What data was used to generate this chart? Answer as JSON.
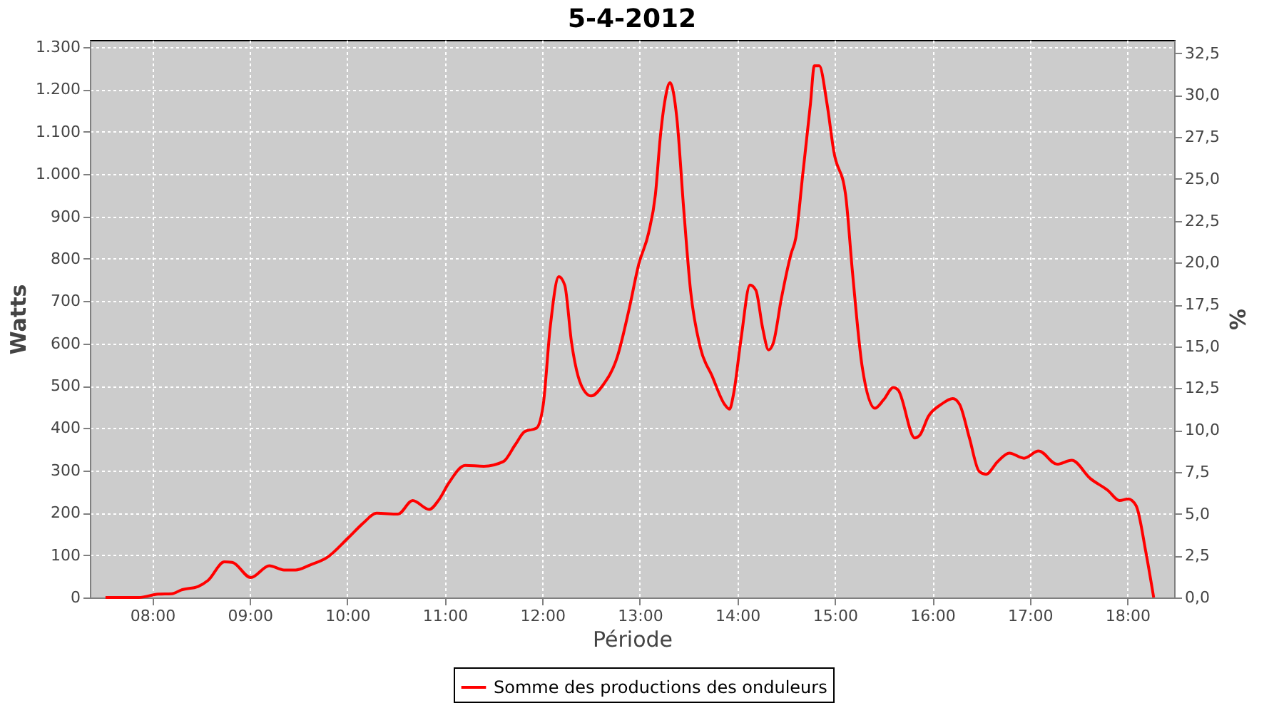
{
  "chart_data": {
    "type": "line",
    "title": "5-4-2012",
    "xlabel": "Période",
    "ylabel": "Watts",
    "y2label": "%",
    "xlim": [
      7.36,
      18.48
    ],
    "xticks": [
      {
        "value": 8,
        "label": "08:00"
      },
      {
        "value": 9,
        "label": "09:00"
      },
      {
        "value": 10,
        "label": "10:00"
      },
      {
        "value": 11,
        "label": "11:00"
      },
      {
        "value": 12,
        "label": "12:00"
      },
      {
        "value": 13,
        "label": "13:00"
      },
      {
        "value": 14,
        "label": "14:00"
      },
      {
        "value": 15,
        "label": "15:00"
      },
      {
        "value": 16,
        "label": "16:00"
      },
      {
        "value": 17,
        "label": "17:00"
      },
      {
        "value": 18,
        "label": "18:00"
      }
    ],
    "ylim": [
      0,
      1317
    ],
    "yticks": [
      0,
      100,
      200,
      300,
      400,
      500,
      600,
      700,
      800,
      900,
      {
        "value": 1000,
        "label": "1.000"
      },
      {
        "value": 1100,
        "label": "1.100"
      },
      {
        "value": 1200,
        "label": "1.200"
      },
      {
        "value": 1300,
        "label": "1.300"
      }
    ],
    "y2lim": [
      0,
      33.3
    ],
    "y2ticks": [
      {
        "value": 0,
        "label": "0,0"
      },
      {
        "value": 2.5,
        "label": "2,5"
      },
      {
        "value": 5,
        "label": "5,0"
      },
      {
        "value": 7.5,
        "label": "7,5"
      },
      {
        "value": 10,
        "label": "10,0"
      },
      {
        "value": 12.5,
        "label": "12,5"
      },
      {
        "value": 15,
        "label": "15,0"
      },
      {
        "value": 17.5,
        "label": "17,5"
      },
      {
        "value": 20,
        "label": "20,0"
      },
      {
        "value": 22.5,
        "label": "22,5"
      },
      {
        "value": 25,
        "label": "25,0"
      },
      {
        "value": 27.5,
        "label": "27,5"
      },
      {
        "value": 30,
        "label": "30,0"
      },
      {
        "value": 32.5,
        "label": "32,5"
      }
    ],
    "grid": true,
    "legend": "bottom",
    "marker": "none",
    "line_style": "solid",
    "series": [
      {
        "name": "Somme des productions des onduleurs",
        "color": "#ff0000",
        "x": [
          7.52,
          7.86,
          8.06,
          8.2,
          8.3,
          8.47,
          8.57,
          8.74,
          8.82,
          9.01,
          9.2,
          9.35,
          9.47,
          9.62,
          9.79,
          10.01,
          10.16,
          10.3,
          10.52,
          10.67,
          10.84,
          10.94,
          11.04,
          11.21,
          11.4,
          11.6,
          11.72,
          11.82,
          11.94,
          12.01,
          12.08,
          12.17,
          12.23,
          12.3,
          12.4,
          12.5,
          12.62,
          12.77,
          12.89,
          12.99,
          13.09,
          13.16,
          13.21,
          13.26,
          13.31,
          13.38,
          13.45,
          13.52,
          13.62,
          13.74,
          13.87,
          13.92,
          13.96,
          14.04,
          14.13,
          14.19,
          14.26,
          14.32,
          14.37,
          14.45,
          14.55,
          14.6,
          14.67,
          14.75,
          14.79,
          14.84,
          14.92,
          14.99,
          15.11,
          15.18,
          15.28,
          15.41,
          15.5,
          15.6,
          15.65,
          15.82,
          15.87,
          15.96,
          16.09,
          16.21,
          16.28,
          16.38,
          16.48,
          16.55,
          16.67,
          16.79,
          16.94,
          17.09,
          17.28,
          17.43,
          17.62,
          17.8,
          17.92,
          18.01,
          18.09,
          18.19,
          18.27
        ],
        "values": [
          0,
          0,
          8,
          9,
          18,
          26,
          40,
          84,
          83,
          47,
          75,
          65,
          65,
          77,
          94,
          141,
          175,
          199,
          197,
          229,
          208,
          231,
          270,
          312,
          310,
          321,
          360,
          392,
          400,
          456,
          636,
          758,
          738,
          602,
          501,
          476,
          501,
          569,
          681,
          788,
          861,
          952,
          1087,
          1177,
          1216,
          1132,
          918,
          726,
          591,
          524,
          456,
          445,
          479,
          614,
          738,
          726,
          636,
          585,
          602,
          704,
          811,
          850,
          997,
          1166,
          1256,
          1256,
          1166,
          1053,
          952,
          771,
          546,
          447,
          467,
          496,
          490,
          377,
          383,
          428,
          456,
          470,
          456,
          377,
          298,
          291,
          321,
          341,
          329,
          346,
          315,
          324,
          281,
          253,
          229,
          233,
          217,
          107,
          0
        ]
      }
    ]
  }
}
